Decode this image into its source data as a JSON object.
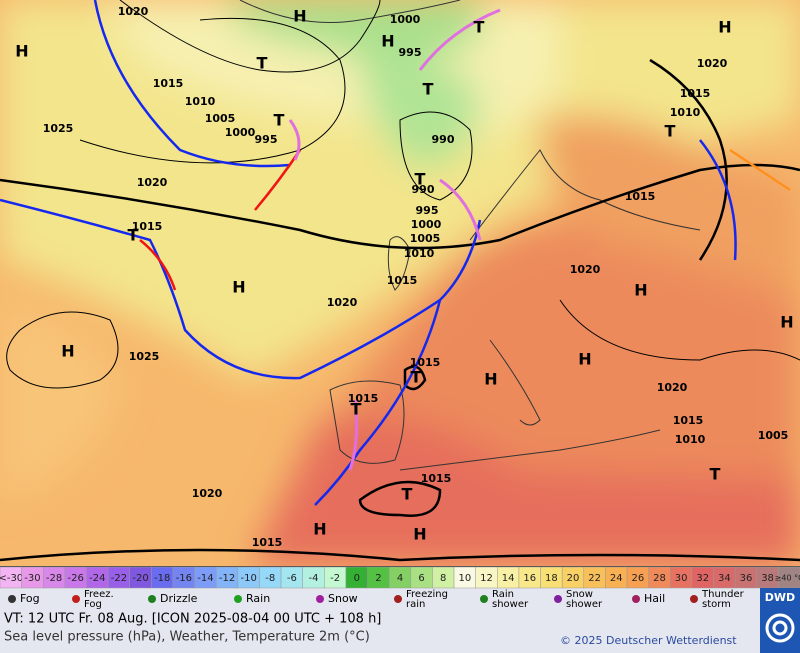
{
  "map": {
    "pressure_labels": [
      "1020",
      "1015",
      "1010",
      "1005",
      "1000",
      "995",
      "1025",
      "1020",
      "1015",
      "1020",
      "1025",
      "1015",
      "1010",
      "1005",
      "1000",
      "995",
      "990",
      "990",
      "1000",
      "995",
      "1020",
      "1015",
      "1010",
      "1015",
      "1020",
      "1015",
      "1015",
      "1015",
      "1020",
      "1015",
      "1020",
      "1015",
      "1010",
      "1005"
    ],
    "centers": [
      "H",
      "H",
      "H",
      "H",
      "T",
      "T",
      "T",
      "T",
      "T",
      "T",
      "T",
      "H",
      "H",
      "H",
      "H",
      "H",
      "H",
      "T",
      "T",
      "T",
      "H",
      "H",
      "T"
    ]
  },
  "legend": {
    "scale": [
      {
        "label": "<-30",
        "color": "#f2b4f2"
      },
      {
        "label": "-30",
        "color": "#e898e8"
      },
      {
        "label": "-28",
        "color": "#d888e8"
      },
      {
        "label": "-26",
        "color": "#c878e8"
      },
      {
        "label": "-24",
        "color": "#b068e8"
      },
      {
        "label": "-22",
        "color": "#9860e8"
      },
      {
        "label": "-20",
        "color": "#8058e0"
      },
      {
        "label": "-18",
        "color": "#6a6cf0"
      },
      {
        "label": "-16",
        "color": "#7484f0"
      },
      {
        "label": "-14",
        "color": "#7c9cf8"
      },
      {
        "label": "-12",
        "color": "#84b4f8"
      },
      {
        "label": "-10",
        "color": "#8cc8f8"
      },
      {
        "label": "-8",
        "color": "#96d8f8"
      },
      {
        "label": "-6",
        "color": "#a4e6f0"
      },
      {
        "label": "-4",
        "color": "#b4f0e0"
      },
      {
        "label": "-2",
        "color": "#c4f8d0"
      },
      {
        "label": "0",
        "color": "#34b034"
      },
      {
        "label": "2",
        "color": "#54c044"
      },
      {
        "label": "4",
        "color": "#84d064"
      },
      {
        "label": "6",
        "color": "#aae084"
      },
      {
        "label": "8",
        "color": "#d0f0a4"
      },
      {
        "label": "10",
        "color": "#fafae4"
      },
      {
        "label": "12",
        "color": "#f8f6c4"
      },
      {
        "label": "14",
        "color": "#f8f0a4"
      },
      {
        "label": "16",
        "color": "#f8e88a"
      },
      {
        "label": "18",
        "color": "#f8e074"
      },
      {
        "label": "20",
        "color": "#f8d064"
      },
      {
        "label": "22",
        "color": "#f8c05a"
      },
      {
        "label": "24",
        "color": "#f8b052"
      },
      {
        "label": "26",
        "color": "#f8a052"
      },
      {
        "label": "28",
        "color": "#f08a5a"
      },
      {
        "label": "30",
        "color": "#e87262"
      },
      {
        "label": "32",
        "color": "#e06464"
      },
      {
        "label": "34",
        "color": "#d86a6a"
      },
      {
        "label": "36",
        "color": "#c87272"
      },
      {
        "label": "38",
        "color": "#b87a7a"
      },
      {
        "label": "≥40 °C",
        "color": "#a08484"
      }
    ],
    "weather": [
      "Fog",
      "Freez. Fog",
      "Drizzle",
      "Rain",
      "Snow",
      "Freezing rain",
      "Rain shower",
      "Snow shower",
      "Hail",
      "Thunder storm"
    ]
  },
  "footer": {
    "valid_time": "VT: 12 UTC Fr.  08 Aug. [ICON 2025-08-04  00 UTC + 108 h]",
    "description": "Sea level pressure (hPa), Weather, Temperature 2m (°C)",
    "copyright": "© 2025 Deutscher Wetterdienst",
    "logo": "DWD"
  }
}
